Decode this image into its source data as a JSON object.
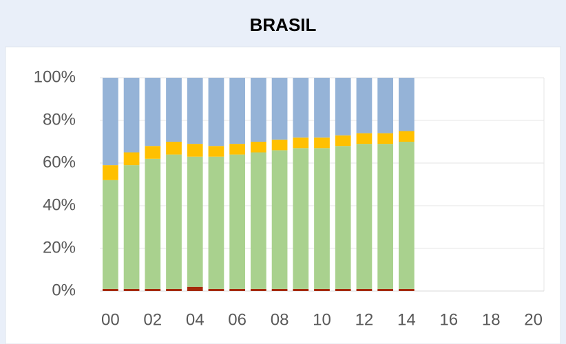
{
  "chart_data": {
    "type": "stacked_bar",
    "title": "BRASIL",
    "categories": [
      "00",
      null,
      "02",
      null,
      "04",
      null,
      "06",
      null,
      "08",
      null,
      "10",
      null,
      "12",
      null,
      "14",
      null,
      "16",
      null,
      "18",
      null,
      "20"
    ],
    "series": [
      {
        "color": "#a52a0a",
        "values": [
          1,
          1,
          1,
          1,
          2,
          1,
          1,
          1,
          1,
          1,
          1,
          1,
          1,
          1,
          1,
          null,
          null,
          null,
          null,
          null,
          null
        ]
      },
      {
        "color": "#a9d18e",
        "values": [
          51,
          58,
          61,
          63,
          61,
          62,
          63,
          64,
          65,
          66,
          66,
          67,
          68,
          68,
          69,
          null,
          null,
          null,
          null,
          null,
          null
        ]
      },
      {
        "color": "#ffc000",
        "values": [
          7,
          6,
          6,
          6,
          6,
          5,
          5,
          5,
          5,
          5,
          5,
          5,
          5,
          5,
          5,
          null,
          null,
          null,
          null,
          null,
          null
        ]
      },
      {
        "color": "#95b3d7",
        "values": [
          41,
          35,
          32,
          30,
          31,
          32,
          31,
          30,
          29,
          28,
          28,
          27,
          26,
          26,
          25,
          null,
          null,
          null,
          null,
          null,
          null
        ]
      }
    ],
    "ylim": [
      0,
      100
    ],
    "yticks": [
      {
        "value": 0,
        "label": "0%"
      },
      {
        "value": 20,
        "label": "20%"
      },
      {
        "value": 40,
        "label": "40%"
      },
      {
        "value": 60,
        "label": "60%"
      },
      {
        "value": 80,
        "label": "80%"
      },
      {
        "value": 100,
        "label": "100%"
      }
    ],
    "grid": true
  }
}
